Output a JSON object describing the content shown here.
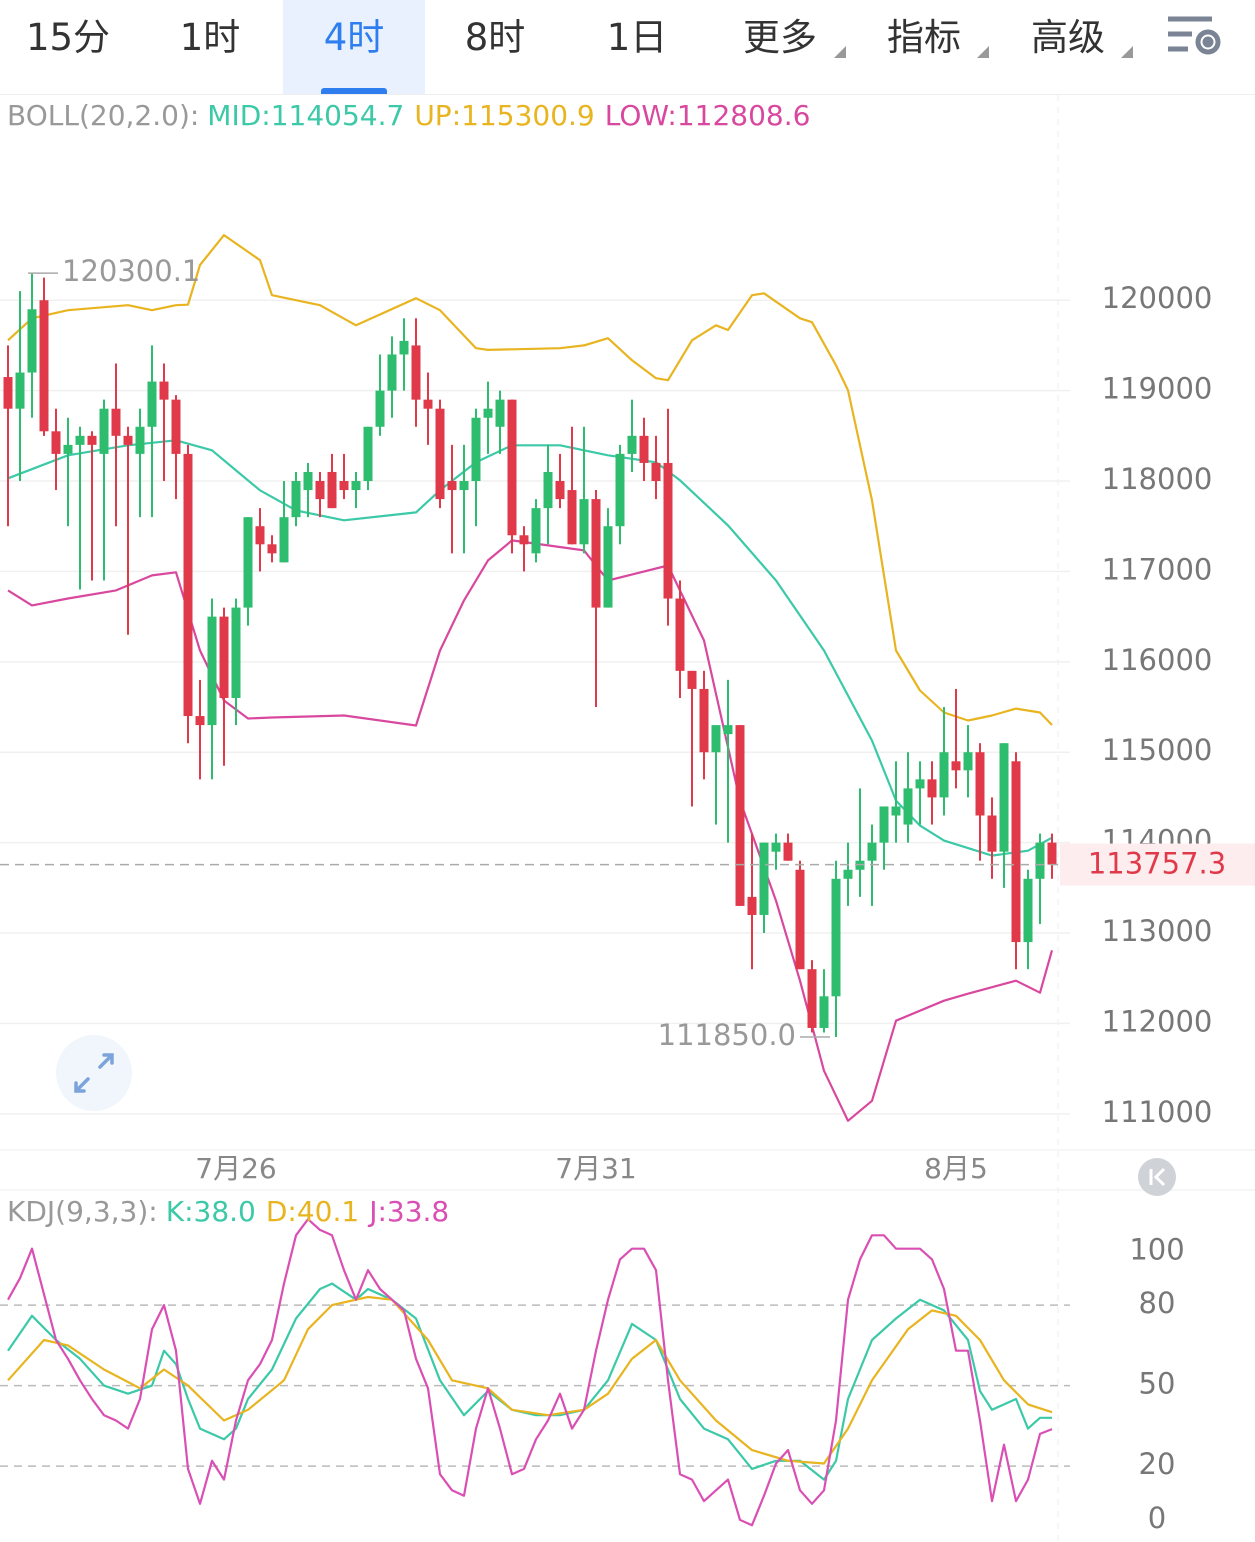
{
  "tabs": [
    "15分",
    "1时",
    "4时",
    "8时",
    "1日",
    "更多",
    "指标",
    "高级"
  ],
  "active_tab": 2,
  "chart_data": [
    {
      "type": "candlestick",
      "indicator_label": "BOLL(20,2.0):",
      "categories": [
        null,
        null,
        null,
        null,
        null,
        null,
        null,
        null,
        null,
        null,
        null,
        null,
        null,
        null,
        null,
        null,
        null,
        null,
        null,
        "7月26",
        null,
        null,
        null,
        null,
        null,
        null,
        null,
        null,
        null,
        null,
        null,
        null,
        null,
        null,
        null,
        null,
        null,
        null,
        null,
        null,
        null,
        null,
        null,
        null,
        null,
        null,
        null,
        null,
        null,
        "7月31",
        null,
        null,
        null,
        null,
        null,
        null,
        null,
        null,
        null,
        null,
        null,
        null,
        null,
        null,
        null,
        null,
        null,
        null,
        null,
        null,
        null,
        null,
        null,
        null,
        null,
        null,
        null,
        null,
        null,
        "8月5",
        null,
        null,
        null,
        null,
        null,
        null,
        null,
        null
      ],
      "open": [
        119150,
        118800,
        119200,
        120000,
        118550,
        118300,
        118400,
        118500,
        118300,
        118800,
        118500,
        118300,
        118600,
        119100,
        118900,
        118300,
        115400,
        115300,
        116500,
        115600,
        116600,
        117500,
        117300,
        117100,
        117600,
        117900,
        118000,
        118100,
        118000,
        117900,
        118000,
        118600,
        119000,
        119400,
        119500,
        118900,
        118800,
        118000,
        117900,
        118000,
        118700,
        118600,
        118900,
        117400,
        117200,
        117700,
        118000,
        117900,
        117300,
        117800,
        116600,
        117500,
        118300,
        118500,
        118200,
        118200,
        116700,
        115900,
        115700,
        115000,
        115200,
        115300,
        113400,
        113200,
        113900,
        114000,
        113700,
        112600,
        111950,
        112300,
        113600,
        113700,
        113800,
        114000,
        114300,
        114200,
        114600,
        114700,
        114500,
        114900,
        114800,
        115000,
        114300,
        113900,
        114900,
        112900,
        113600,
        114000
      ],
      "high": [
        119500,
        120100,
        120300.1,
        120250,
        118800,
        118700,
        118600,
        118550,
        118900,
        119300,
        118600,
        118800,
        119500,
        119300,
        118950,
        118400,
        115800,
        116700,
        116600,
        116700,
        117600,
        117700,
        117400,
        118000,
        118100,
        118200,
        118100,
        118300,
        118300,
        118100,
        118600,
        119400,
        119600,
        119800,
        119800,
        119200,
        118900,
        118400,
        118400,
        118800,
        119100,
        119000,
        118900,
        117500,
        117800,
        118400,
        118300,
        118600,
        118600,
        117900,
        117700,
        118400,
        118900,
        118700,
        118500,
        118800,
        116900,
        115900,
        115900,
        115200,
        115800,
        115300,
        114100,
        114000,
        114100,
        114100,
        113800,
        112700,
        112600,
        113800,
        114000,
        114600,
        114200,
        114400,
        114900,
        115000,
        114900,
        114900,
        115500,
        115700,
        115300,
        115100,
        114500,
        115100,
        115000,
        113700,
        114100,
        114100
      ],
      "low": [
        117500,
        118000,
        118700,
        118500,
        117900,
        117500,
        116800,
        116900,
        116900,
        117500,
        116300,
        117600,
        117600,
        118000,
        117800,
        115100,
        114700,
        114700,
        114850,
        115300,
        116400,
        117000,
        117100,
        117100,
        117500,
        117600,
        117600,
        117700,
        117800,
        117700,
        117900,
        118500,
        118700,
        119000,
        118600,
        118400,
        117700,
        117200,
        117200,
        117500,
        118300,
        118300,
        117200,
        117000,
        117100,
        117300,
        117700,
        117300,
        117200,
        115500,
        116600,
        117300,
        118100,
        118000,
        117800,
        116400,
        115600,
        114400,
        114700,
        114200,
        114000,
        113300,
        112600,
        113000,
        113700,
        113800,
        112600,
        111900,
        111900,
        111850,
        113300,
        113400,
        113300,
        113700,
        114000,
        114000,
        114200,
        114200,
        114300,
        114600,
        114500,
        113800,
        113600,
        113500,
        112600,
        112600,
        113100,
        113600
      ],
      "close": [
        118800,
        119200,
        119900,
        118550,
        118300,
        118400,
        118500,
        118400,
        118800,
        118500,
        118400,
        118600,
        119100,
        118900,
        118300,
        115400,
        115300,
        116500,
        115600,
        116600,
        117600,
        117300,
        117200,
        117600,
        118000,
        118100,
        117800,
        117700,
        117900,
        118000,
        118600,
        119000,
        119400,
        119550,
        118900,
        118800,
        117800,
        117900,
        118000,
        118700,
        118800,
        118900,
        117400,
        117300,
        117700,
        118100,
        117800,
        117300,
        117800,
        116600,
        117500,
        118300,
        118500,
        118200,
        118000,
        116700,
        115900,
        115700,
        115000,
        115300,
        115300,
        113300,
        113200,
        114000,
        114000,
        113800,
        112600,
        111950,
        112300,
        113600,
        113700,
        113800,
        114000,
        114400,
        114400,
        114600,
        114700,
        114500,
        115000,
        114800,
        115000,
        114300,
        113900,
        115100,
        112900,
        113600,
        114000,
        113757.3
      ],
      "up_color": "#2ebd6e",
      "down_color": "#e0394a",
      "lines": [
        {
          "name": "MID:114054.7",
          "color": "#3cc9a8",
          "x": [
            0,
            5,
            10,
            14,
            17,
            19,
            21,
            24,
            28,
            34,
            36,
            39,
            42,
            46,
            50,
            54,
            56,
            60,
            64,
            68,
            72,
            74,
            76,
            78,
            82,
            85,
            87
          ],
          "values": [
            118030,
            118285,
            118395,
            118450,
            118340,
            118118,
            117897,
            117675,
            117565,
            117653,
            117897,
            118207,
            118395,
            118395,
            118285,
            118207,
            118008,
            117509,
            116900,
            116125,
            115129,
            114465,
            114188,
            114022,
            113856,
            113911,
            114054.7
          ]
        },
        {
          "name": "UP:115300.9",
          "color": "#e8b420",
          "x": [
            0,
            2,
            5,
            10,
            12,
            14,
            15,
            16,
            18,
            21,
            22,
            26,
            29,
            34,
            36,
            39,
            40,
            46,
            48,
            50,
            52,
            54,
            55,
            57,
            59,
            60,
            62,
            63,
            66,
            67,
            69,
            70,
            72,
            74,
            76,
            78,
            80,
            82,
            84,
            86,
            87
          ],
          "values": [
            119557,
            119800,
            119889,
            119945,
            119890,
            119945,
            119950,
            120390,
            120720,
            120443,
            120055,
            119945,
            119723,
            120022,
            119890,
            119469,
            119450,
            119469,
            119500,
            119580,
            119335,
            119137,
            119115,
            119557,
            119723,
            119670,
            120055,
            120077,
            119800,
            119757,
            119280,
            119004,
            117786,
            116125,
            115683,
            115440,
            115351,
            115406,
            115483,
            115440,
            115300.9
          ]
        },
        {
          "name": "LOW:112808.6",
          "color": "#d9489f",
          "x": [
            0,
            2,
            5,
            9,
            12,
            14,
            16,
            18,
            20,
            22,
            28,
            34,
            36,
            38,
            40,
            42,
            48,
            50,
            55,
            58,
            61,
            64,
            66,
            68,
            70,
            72,
            74,
            78,
            80,
            84,
            86,
            87
          ],
          "values": [
            116790,
            116624,
            116700,
            116790,
            116956,
            116990,
            116125,
            115572,
            115373,
            115384,
            115406,
            115296,
            116125,
            116679,
            117122,
            117343,
            117232,
            116900,
            117066,
            116236,
            114465,
            113358,
            112473,
            111476,
            110923,
            111144,
            112030,
            112251,
            112329,
            112473,
            112340,
            112808.6
          ]
        }
      ],
      "annotations": [
        {
          "label": "120300.1",
          "x": 2,
          "value": 120300.1
        },
        {
          "label": "111850.0",
          "x": 69,
          "value": 111850
        }
      ],
      "last_price": 113757.3,
      "ylim": [
        110600,
        122270
      ],
      "yticks": [
        111000,
        112000,
        113000,
        114000,
        115000,
        116000,
        117000,
        118000,
        119000,
        120000
      ],
      "grid": true
    },
    {
      "type": "line",
      "indicator_label": "KDJ(9,3,3):",
      "series": [
        {
          "name": "K:38.0",
          "color": "#3cc9a8",
          "x": [
            0,
            2,
            4,
            6,
            8,
            10,
            12,
            13,
            14,
            15,
            16,
            18,
            19,
            20,
            22,
            24,
            26,
            27,
            29,
            30,
            32,
            34,
            36,
            38,
            40,
            42,
            44,
            46,
            48,
            50,
            52,
            54,
            56,
            58,
            60,
            62,
            64,
            66,
            68,
            69,
            70,
            72,
            74,
            76,
            78,
            80,
            81,
            82,
            84,
            85,
            86,
            87
          ],
          "values": [
            63,
            76,
            67,
            60,
            50,
            47,
            50,
            63,
            58,
            45,
            34,
            30,
            34,
            45,
            56,
            75,
            86,
            88,
            82,
            86,
            82,
            75,
            52,
            39,
            48,
            41,
            39,
            39,
            41,
            52,
            73,
            67,
            45,
            34,
            30,
            19,
            22,
            22,
            15,
            22,
            45,
            67,
            75,
            82,
            78,
            67,
            48,
            41,
            45,
            34,
            38,
            38
          ]
        },
        {
          "name": "D:40.1",
          "color": "#e8b420",
          "x": [
            0,
            3,
            5,
            8,
            11,
            13,
            15,
            18,
            20,
            23,
            25,
            27,
            30,
            32,
            35,
            37,
            40,
            42,
            45,
            48,
            50,
            52,
            54,
            56,
            59,
            62,
            65,
            68,
            70,
            72,
            75,
            77,
            79,
            81,
            83,
            85,
            87
          ],
          "values": [
            52,
            67,
            65,
            56,
            49,
            56,
            50,
            37,
            41,
            52,
            71,
            80,
            83,
            82,
            67,
            52,
            49,
            41,
            39,
            41,
            47,
            60,
            67,
            52,
            37,
            26,
            22,
            21,
            34,
            52,
            71,
            78,
            76,
            67,
            52,
            43,
            40.1
          ]
        },
        {
          "name": "J:33.8",
          "color": "#d94fb3",
          "values": [
            82,
            90,
            101,
            84,
            67,
            60,
            52,
            45,
            39,
            37,
            34,
            45,
            71,
            80,
            63,
            19,
            6,
            22,
            15,
            37,
            52,
            58,
            67,
            88,
            106,
            112,
            108,
            106,
            93,
            82,
            93,
            86,
            82,
            78,
            60,
            49,
            17,
            11,
            9,
            34,
            49,
            34,
            17,
            19,
            30,
            37,
            47,
            34,
            41,
            63,
            82,
            97,
            101,
            101,
            93,
            52,
            17,
            15,
            7,
            11,
            15,
            0,
            -2,
            9,
            21,
            26,
            11,
            6,
            11,
            37,
            82,
            97,
            106,
            106,
            101,
            101,
            101,
            97,
            86,
            63,
            63,
            37,
            7,
            28,
            7,
            15,
            32,
            33.8
          ]
        }
      ],
      "hlines": [
        20,
        50,
        80
      ],
      "ylim": [
        -7.5,
        121
      ],
      "yticks": [
        0,
        20,
        50,
        80,
        100
      ]
    }
  ]
}
